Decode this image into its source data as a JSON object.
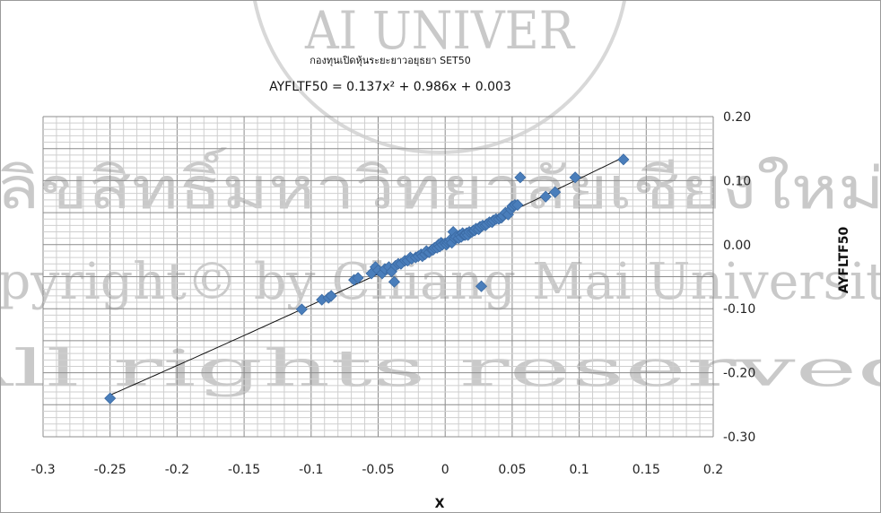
{
  "watermark": {
    "arc_text": "AI UNIVER",
    "line1": "ลิขสิทธิ์มหาวิทยาลัยเชียงใหม่",
    "line2": "Copyright© by Chiang Mai University",
    "line3": "All rights reserved"
  },
  "chart_data": {
    "type": "scatter",
    "title": "กองทุนเปิดหุ้นระยะยาวอยุธยา SET50",
    "equation": "AYFLTF50 = 0.137x² + 0.986x + 0.003",
    "xlabel": "X",
    "ylabel": "AYFLTF50",
    "xlim": [
      -0.3,
      0.2
    ],
    "ylim": [
      -0.3,
      0.2
    ],
    "x_ticks": [
      "-0.3",
      "-0.25",
      "-0.2",
      "-0.15",
      "-0.1",
      "-0.05",
      "0",
      "0.05",
      "0.1",
      "0.15",
      "0.2"
    ],
    "y_ticks": [
      "0.20",
      "0.10",
      "0.00",
      "-0.10",
      "-0.20",
      "-0.30"
    ],
    "y_axis_position": "right",
    "grid": true,
    "trendline": {
      "type": "polynomial",
      "coefficients": [
        0.137,
        0.986,
        0.003
      ]
    },
    "marker": "diamond",
    "marker_color": "#4a7ebb",
    "series": [
      {
        "points": [
          [
            -0.25,
            -0.24
          ],
          [
            -0.107,
            -0.101
          ],
          [
            -0.092,
            -0.086
          ],
          [
            -0.087,
            -0.083
          ],
          [
            -0.085,
            -0.08
          ],
          [
            -0.068,
            -0.055
          ],
          [
            -0.065,
            -0.052
          ],
          [
            -0.055,
            -0.045
          ],
          [
            -0.052,
            -0.035
          ],
          [
            -0.05,
            -0.04
          ],
          [
            -0.047,
            -0.045
          ],
          [
            -0.045,
            -0.038
          ],
          [
            -0.042,
            -0.035
          ],
          [
            -0.04,
            -0.042
          ],
          [
            -0.038,
            -0.058
          ],
          [
            -0.037,
            -0.033
          ],
          [
            -0.035,
            -0.03
          ],
          [
            -0.033,
            -0.03
          ],
          [
            -0.03,
            -0.025
          ],
          [
            -0.028,
            -0.025
          ],
          [
            -0.026,
            -0.02
          ],
          [
            -0.025,
            -0.022
          ],
          [
            -0.022,
            -0.02
          ],
          [
            -0.02,
            -0.018
          ],
          [
            -0.018,
            -0.015
          ],
          [
            -0.017,
            -0.018
          ],
          [
            -0.015,
            -0.015
          ],
          [
            -0.014,
            -0.01
          ],
          [
            -0.012,
            -0.012
          ],
          [
            -0.01,
            -0.008
          ],
          [
            -0.009,
            -0.008
          ],
          [
            -0.008,
            -0.005
          ],
          [
            -0.006,
            -0.005
          ],
          [
            -0.005,
            0.0
          ],
          [
            -0.004,
            -0.003
          ],
          [
            -0.003,
            0.003
          ],
          [
            -0.002,
            0.0
          ],
          [
            0.0,
            0.002
          ],
          [
            0.001,
            0.0
          ],
          [
            0.002,
            0.003
          ],
          [
            0.003,
            0.005
          ],
          [
            0.004,
            0.008
          ],
          [
            0.005,
            0.003
          ],
          [
            0.006,
            0.02
          ],
          [
            0.007,
            0.01
          ],
          [
            0.008,
            0.012
          ],
          [
            0.01,
            0.01
          ],
          [
            0.011,
            0.015
          ],
          [
            0.012,
            0.012
          ],
          [
            0.013,
            0.018
          ],
          [
            0.014,
            0.015
          ],
          [
            0.015,
            0.015
          ],
          [
            0.016,
            0.018
          ],
          [
            0.017,
            0.015
          ],
          [
            0.018,
            0.02
          ],
          [
            0.02,
            0.02
          ],
          [
            0.021,
            0.022
          ],
          [
            0.022,
            0.022
          ],
          [
            0.023,
            0.025
          ],
          [
            0.025,
            0.024
          ],
          [
            0.026,
            0.028
          ],
          [
            0.027,
            -0.065
          ],
          [
            0.028,
            0.03
          ],
          [
            0.03,
            0.03
          ],
          [
            0.031,
            0.032
          ],
          [
            0.033,
            0.035
          ],
          [
            0.035,
            0.035
          ],
          [
            0.036,
            0.038
          ],
          [
            0.038,
            0.04
          ],
          [
            0.04,
            0.04
          ],
          [
            0.042,
            0.042
          ],
          [
            0.043,
            0.045
          ],
          [
            0.045,
            0.05
          ],
          [
            0.047,
            0.047
          ],
          [
            0.049,
            0.055
          ],
          [
            0.05,
            0.06
          ],
          [
            0.052,
            0.062
          ],
          [
            0.054,
            0.062
          ],
          [
            0.056,
            0.105
          ],
          [
            0.075,
            0.075
          ],
          [
            0.082,
            0.082
          ],
          [
            0.097,
            0.105
          ],
          [
            0.133,
            0.133
          ]
        ]
      }
    ]
  }
}
